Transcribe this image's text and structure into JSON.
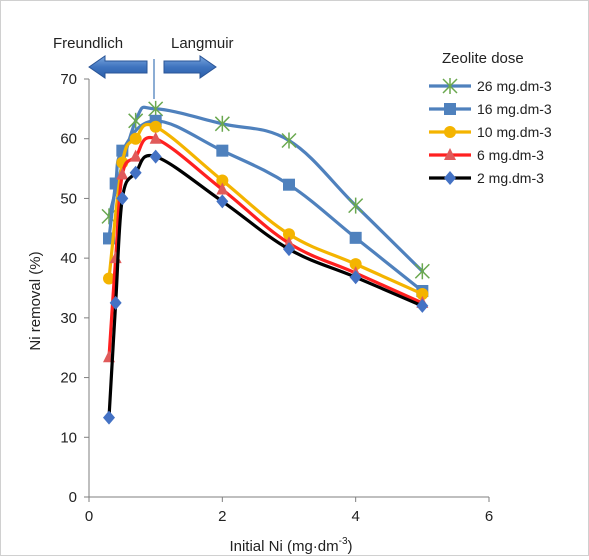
{
  "chart_data": {
    "type": "line",
    "xlabel": "Initial Ni (mg·dm",
    "xlabel_sup": "-3",
    "xlabel_close": ")",
    "ylabel": "Ni removal (%)",
    "xlim": [
      0,
      6
    ],
    "ylim": [
      0,
      70
    ],
    "x_ticks": [
      0,
      2,
      4,
      6
    ],
    "y_ticks": [
      0,
      10,
      20,
      30,
      40,
      50,
      60,
      70
    ],
    "grid": false,
    "legend": {
      "title": "Zeolite dose",
      "position": "top-right"
    },
    "annotations": {
      "left_label": "Freundlich",
      "right_label": "Langmuir",
      "divider_x": 1
    },
    "series": [
      {
        "name": "26 mg.dm-3",
        "color": "#4f81bd",
        "marker": "asterisk",
        "marker_color": "#6aa84f",
        "points": [
          [
            0.3,
            47
          ],
          [
            0.7,
            63
          ],
          [
            1,
            65
          ],
          [
            2,
            62.5
          ],
          [
            3,
            59.7
          ],
          [
            4,
            48.8
          ],
          [
            5,
            37.8
          ]
        ]
      },
      {
        "name": "16 mg.dm-3",
        "color": "#4f81bd",
        "marker": "square",
        "marker_color": "#4f81bd",
        "points": [
          [
            0.3,
            43.3
          ],
          [
            0.4,
            52.5
          ],
          [
            0.5,
            58
          ],
          [
            1,
            63
          ],
          [
            2,
            58
          ],
          [
            3,
            52.3
          ],
          [
            4,
            43.4
          ],
          [
            5,
            34.5
          ]
        ]
      },
      {
        "name": "10 mg.dm-3",
        "color": "#f4b400",
        "marker": "circle",
        "marker_color": "#f4b400",
        "points": [
          [
            0.3,
            36.6
          ],
          [
            0.5,
            56
          ],
          [
            0.7,
            60
          ],
          [
            1,
            62
          ],
          [
            2,
            53
          ],
          [
            3,
            44
          ],
          [
            4,
            39
          ],
          [
            5,
            34
          ]
        ]
      },
      {
        "name": "6 mg.dm-3",
        "color": "#ff2020",
        "marker": "triangle",
        "marker_color": "#e05a5a",
        "points": [
          [
            0.3,
            23.4
          ],
          [
            0.4,
            40
          ],
          [
            0.5,
            54
          ],
          [
            0.7,
            57
          ],
          [
            1,
            60
          ],
          [
            2,
            51.5
          ],
          [
            3,
            42.5
          ],
          [
            4,
            37.5
          ],
          [
            5,
            32.5
          ]
        ]
      },
      {
        "name": "2 mg.dm-3",
        "color": "#000000",
        "marker": "diamond",
        "marker_color": "#4472c4",
        "points": [
          [
            0.3,
            13.3
          ],
          [
            0.4,
            32.5
          ],
          [
            0.5,
            50
          ],
          [
            0.7,
            54.3
          ],
          [
            1,
            57
          ],
          [
            2,
            49.5
          ],
          [
            3,
            41.5
          ],
          [
            4,
            36.8
          ],
          [
            5,
            32
          ]
        ]
      }
    ]
  }
}
